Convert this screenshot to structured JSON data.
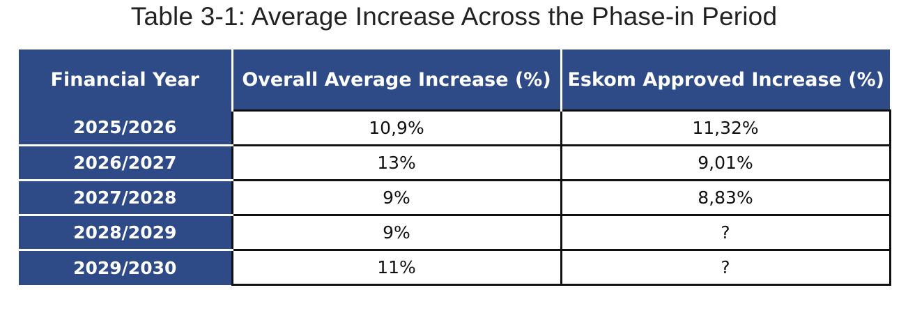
{
  "caption": "Table 3-1: Average Increase Across the Phase-in Period",
  "table": {
    "headers": [
      "Financial Year",
      "Overall Average Increase (%)",
      "Eskom Approved Increase (%)"
    ],
    "rows": [
      {
        "year": "2025/2026",
        "overall": "10,9%",
        "eskom": "11,32%"
      },
      {
        "year": "2026/2027",
        "overall": "13%",
        "eskom": "9,01%"
      },
      {
        "year": "2027/2028",
        "overall": "9%",
        "eskom": "8,83%"
      },
      {
        "year": "2028/2029",
        "overall": "9%",
        "eskom": "?"
      },
      {
        "year": "2029/2030",
        "overall": "11%",
        "eskom": "?"
      }
    ]
  },
  "colors": {
    "header_background": "#2e4a87",
    "header_text": "#ffffff",
    "cell_border": "#111111"
  }
}
